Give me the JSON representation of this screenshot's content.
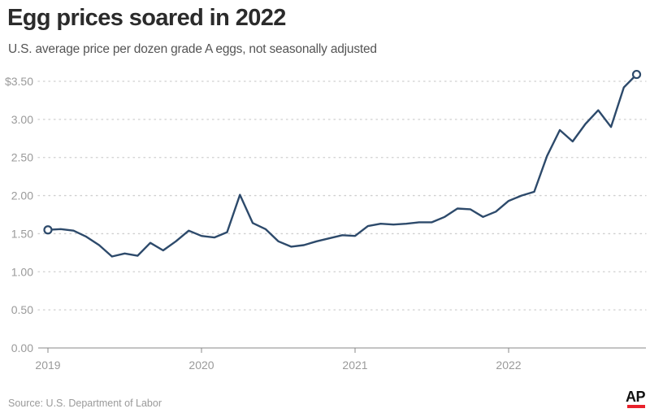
{
  "header": {
    "title": "Egg prices soared in 2022",
    "subtitle": "U.S. average price per dozen grade A eggs, not seasonally adjusted"
  },
  "footer": {
    "source": "Source: U.S. Department of Labor",
    "logo": "AP"
  },
  "colors": {
    "line": "#2d4a6b",
    "grid": "#cfcfcf",
    "axis": "#888888",
    "logo_accent": "#e8212b"
  },
  "chart_data": {
    "type": "line",
    "title": "Egg prices soared in 2022",
    "subtitle": "U.S. average price per dozen grade A eggs, not seasonally adjusted",
    "xlabel": "",
    "ylabel": "",
    "ylim": [
      0,
      3.5
    ],
    "y_ticks": [
      {
        "value": 0,
        "label": "0.00"
      },
      {
        "value": 0.5,
        "label": "0.50"
      },
      {
        "value": 1.0,
        "label": "1.00"
      },
      {
        "value": 1.5,
        "label": "1.50"
      },
      {
        "value": 2.0,
        "label": "2.00"
      },
      {
        "value": 2.5,
        "label": "2.50"
      },
      {
        "value": 3.0,
        "label": "3.00"
      },
      {
        "value": 3.5,
        "label": "$3.50"
      }
    ],
    "x_ticks": [
      {
        "value": "2019-01",
        "label": "2019"
      },
      {
        "value": "2020-01",
        "label": "2020"
      },
      {
        "value": "2021-01",
        "label": "2021"
      },
      {
        "value": "2022-01",
        "label": "2022"
      }
    ],
    "grid": "horizontal dotted",
    "endpoint_markers": true,
    "series": [
      {
        "x": [
          "2019-01",
          "2019-02",
          "2019-03",
          "2019-04",
          "2019-05",
          "2019-06",
          "2019-07",
          "2019-08",
          "2019-09",
          "2019-10",
          "2019-11",
          "2019-12",
          "2020-01",
          "2020-02",
          "2020-03",
          "2020-04",
          "2020-05",
          "2020-06",
          "2020-07",
          "2020-08",
          "2020-09",
          "2020-10",
          "2020-11",
          "2020-12",
          "2021-01",
          "2021-02",
          "2021-03",
          "2021-04",
          "2021-05",
          "2021-06",
          "2021-07",
          "2021-08",
          "2021-09",
          "2021-10",
          "2021-11",
          "2021-12",
          "2022-01",
          "2022-02",
          "2022-03",
          "2022-04",
          "2022-05",
          "2022-06",
          "2022-07",
          "2022-08",
          "2022-09",
          "2022-10",
          "2022-11"
        ],
        "values": [
          1.55,
          1.56,
          1.54,
          1.46,
          1.35,
          1.2,
          1.24,
          1.21,
          1.38,
          1.28,
          1.4,
          1.54,
          1.47,
          1.45,
          1.52,
          2.01,
          1.64,
          1.56,
          1.4,
          1.33,
          1.35,
          1.4,
          1.44,
          1.48,
          1.47,
          1.6,
          1.63,
          1.62,
          1.63,
          1.65,
          1.65,
          1.72,
          1.83,
          1.82,
          1.72,
          1.79,
          1.93,
          2.0,
          2.05,
          2.52,
          2.86,
          2.71,
          2.94,
          3.12,
          2.9,
          3.42,
          3.59
        ]
      }
    ]
  }
}
